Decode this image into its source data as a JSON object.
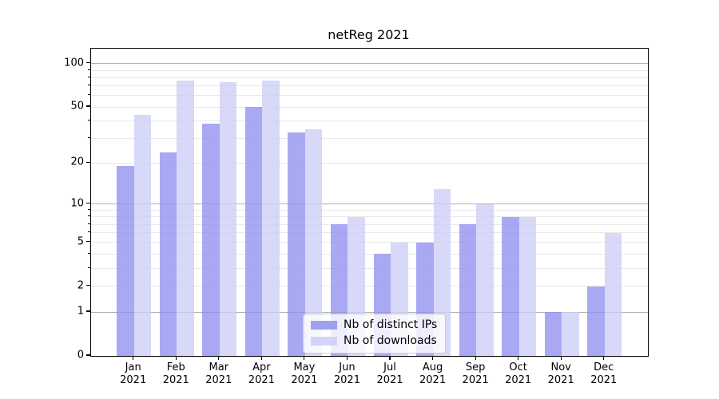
{
  "chart_data": {
    "type": "bar",
    "title": "netReg 2021",
    "categories": [
      "Jan",
      "Feb",
      "Mar",
      "Apr",
      "May",
      "Jun",
      "Jul",
      "Aug",
      "Sep",
      "Oct",
      "Nov",
      "Dec"
    ],
    "year_label": "2021",
    "series": [
      {
        "name": "Nb of distinct IPs",
        "color": "#9191f0",
        "values": [
          19,
          24,
          38,
          50,
          33,
          7,
          4,
          5,
          7,
          8,
          1,
          2
        ]
      },
      {
        "name": "Nb of downloads",
        "color": "#cdcdf7",
        "values": [
          44,
          76,
          74,
          76,
          35,
          8,
          5,
          13,
          10,
          8,
          1,
          6
        ]
      }
    ],
    "xlabel": "",
    "ylabel": "",
    "yscale": "log1p",
    "ylim": [
      0,
      127
    ],
    "yticks": [
      0,
      1,
      2,
      5,
      10,
      20,
      50,
      100
    ],
    "major_gridlines": [
      1,
      10,
      100
    ],
    "minor_gridlines": [
      2,
      3,
      4,
      5,
      6,
      7,
      8,
      9,
      20,
      30,
      40,
      50,
      60,
      70,
      80,
      90
    ],
    "grid": true,
    "legend_position": "lower center"
  }
}
